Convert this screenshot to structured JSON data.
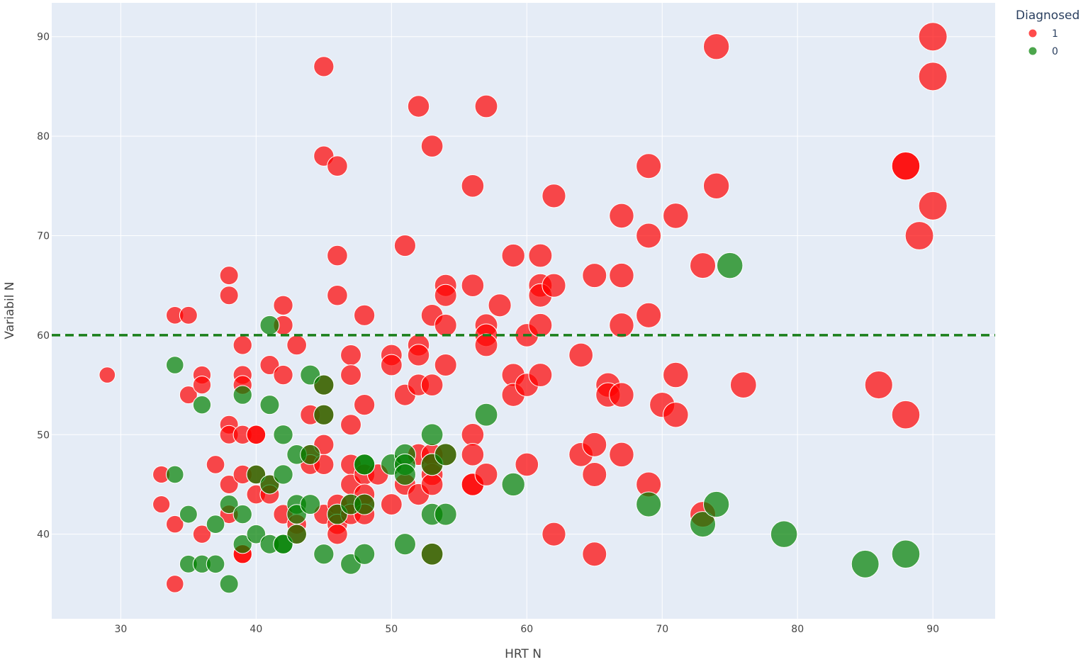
{
  "chart_data": {
    "type": "scatter",
    "title": "",
    "xlabel": "HRT N",
    "ylabel": "Variabil N",
    "xlim": [
      24.9,
      94.6
    ],
    "ylim": [
      31.5,
      93.4
    ],
    "xticks": [
      30,
      40,
      50,
      60,
      70,
      80,
      90
    ],
    "yticks": [
      40,
      50,
      60,
      70,
      80,
      90
    ],
    "grid": true,
    "background": "#e5ecf6",
    "legend": {
      "title": "Diagnosed",
      "placement": "top-right-outside"
    },
    "reference_line": {
      "axis": "y",
      "value": 60,
      "style": "dashed",
      "color": "#1a7f1a"
    },
    "marker_size_encodes": "HRT N",
    "series": [
      {
        "name": "1",
        "color": "#ff0000",
        "x": [
          29,
          33,
          33,
          34,
          34,
          34,
          35,
          35,
          36,
          36,
          36,
          37,
          38,
          38,
          38,
          38,
          38,
          38,
          39,
          39,
          39,
          39,
          39,
          39,
          39,
          40,
          40,
          40,
          40,
          41,
          41,
          41,
          42,
          42,
          42,
          42,
          43,
          43,
          43,
          44,
          44,
          44,
          45,
          45,
          45,
          45,
          45,
          45,
          45,
          46,
          46,
          46,
          46,
          46,
          46,
          46,
          47,
          47,
          47,
          47,
          47,
          47,
          47,
          48,
          48,
          48,
          48,
          48,
          48,
          49,
          50,
          50,
          50,
          51,
          51,
          51,
          52,
          52,
          52,
          52,
          52,
          52,
          53,
          53,
          53,
          53,
          53,
          53,
          53,
          53,
          54,
          54,
          54,
          54,
          54,
          56,
          56,
          56,
          56,
          56,
          56,
          57,
          57,
          57,
          57,
          57,
          58,
          59,
          59,
          59,
          60,
          60,
          60,
          61,
          61,
          61,
          61,
          61,
          62,
          62,
          62,
          64,
          64,
          65,
          65,
          65,
          65,
          66,
          66,
          67,
          67,
          67,
          67,
          67,
          69,
          69,
          69,
          69,
          70,
          71,
          71,
          71,
          73,
          73,
          74,
          74,
          76,
          86,
          88,
          88,
          88,
          89,
          90,
          90,
          90
        ],
        "y": [
          56,
          46,
          43,
          62,
          41,
          35,
          62,
          54,
          56,
          55,
          40,
          47,
          66,
          64,
          51,
          50,
          45,
          42,
          59,
          56,
          55,
          46,
          38,
          50,
          38,
          50,
          46,
          44,
          50,
          57,
          45,
          44,
          63,
          61,
          56,
          42,
          59,
          41,
          40,
          52,
          48,
          47,
          87,
          78,
          55,
          52,
          49,
          47,
          42,
          77,
          68,
          64,
          43,
          42,
          41,
          40,
          58,
          56,
          51,
          47,
          45,
          43,
          42,
          62,
          53,
          46,
          44,
          43,
          42,
          46,
          58,
          57,
          43,
          69,
          54,
          45,
          83,
          59,
          58,
          55,
          48,
          44,
          79,
          62,
          55,
          48,
          46,
          45,
          38,
          47,
          65,
          64,
          61,
          57,
          48,
          75,
          65,
          50,
          48,
          45,
          45,
          83,
          61,
          60,
          59,
          46,
          63,
          68,
          56,
          54,
          60,
          55,
          47,
          68,
          65,
          64,
          61,
          56,
          74,
          65,
          40,
          58,
          48,
          66,
          49,
          46,
          38,
          55,
          54,
          72,
          66,
          61,
          54,
          48,
          77,
          70,
          62,
          45,
          53,
          72,
          56,
          52,
          67,
          42,
          89,
          75,
          55,
          55,
          77,
          77,
          52,
          70,
          90,
          86,
          73
        ]
      },
      {
        "name": "0",
        "color": "#008000",
        "x": [
          34,
          34,
          35,
          35,
          36,
          36,
          37,
          37,
          38,
          38,
          39,
          39,
          39,
          40,
          40,
          41,
          41,
          41,
          41,
          42,
          42,
          42,
          42,
          43,
          43,
          43,
          43,
          44,
          44,
          44,
          45,
          45,
          45,
          46,
          47,
          47,
          48,
          48,
          48,
          48,
          50,
          51,
          51,
          51,
          51,
          53,
          53,
          53,
          53,
          54,
          54,
          57,
          59,
          69,
          73,
          74,
          75,
          79,
          85,
          88
        ],
        "y": [
          57,
          46,
          42,
          37,
          53,
          37,
          41,
          37,
          43,
          35,
          54,
          42,
          39,
          46,
          40,
          61,
          53,
          45,
          39,
          50,
          46,
          39,
          39,
          48,
          43,
          42,
          40,
          56,
          48,
          43,
          55,
          52,
          38,
          42,
          43,
          37,
          47,
          43,
          38,
          47,
          47,
          48,
          47,
          46,
          39,
          50,
          47,
          42,
          38,
          48,
          42,
          52,
          45,
          43,
          41,
          43,
          67,
          40,
          37,
          38
        ]
      }
    ]
  }
}
